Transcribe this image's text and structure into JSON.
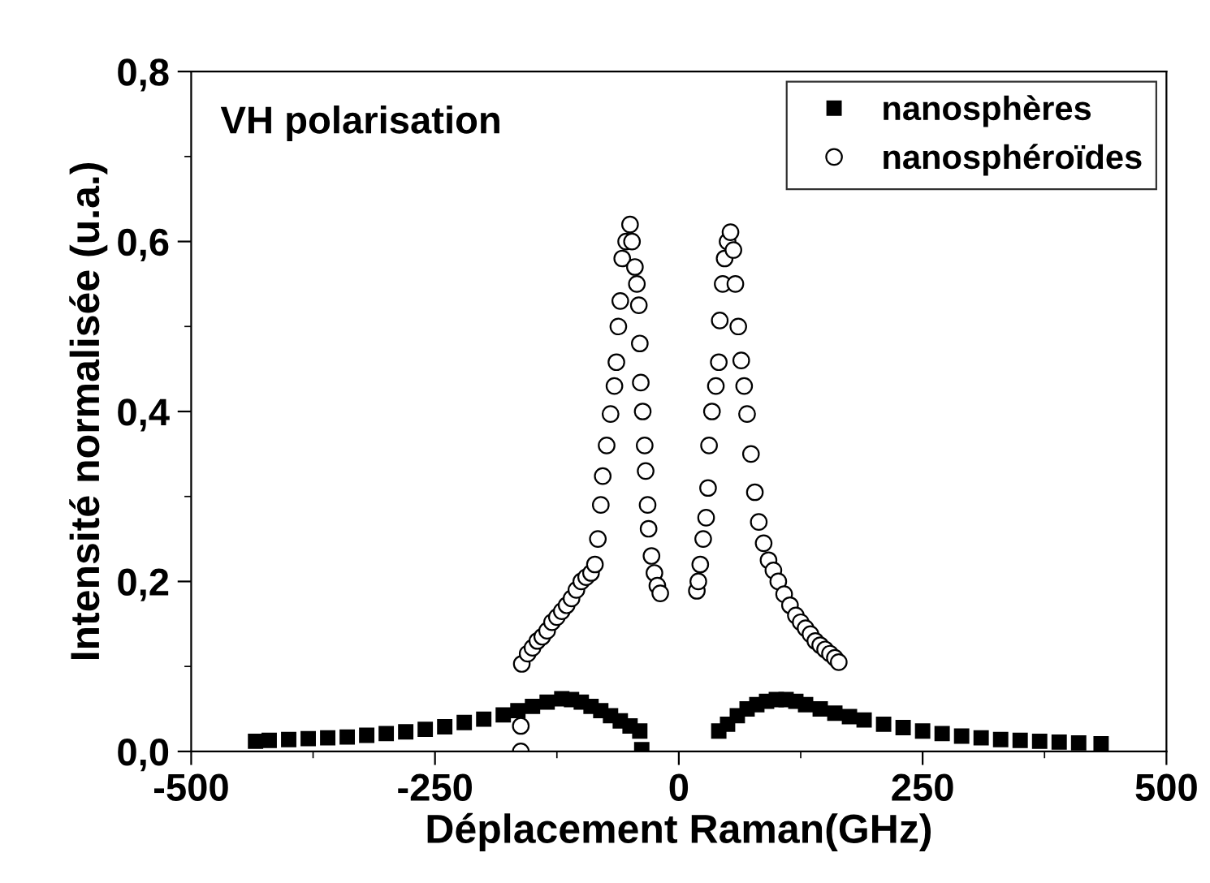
{
  "chart_data": {
    "type": "scatter",
    "xlabel": "Déplacement Raman(GHz)",
    "ylabel": "Intensité normalisée (u.a.)",
    "annotations": [
      "VH polarisation"
    ],
    "xlim": [
      -500,
      500
    ],
    "xticks": [
      -500,
      -250,
      0,
      250,
      500
    ],
    "ylim": [
      0,
      0.8
    ],
    "yticks": [
      {
        "value": 0,
        "label": "0,0"
      },
      {
        "value": 0.2,
        "label": "0,2"
      },
      {
        "value": 0.4,
        "label": "0,4"
      },
      {
        "value": 0.6,
        "label": "0,6"
      },
      {
        "value": 0.8,
        "label": "0,8"
      }
    ],
    "grid": false,
    "legend": "top right",
    "series": [
      {
        "name": "nanosphères",
        "color": "#000000",
        "marker": "square",
        "x": [
          -434,
          -420,
          -400,
          -380,
          -360,
          -340,
          -320,
          -300,
          -280,
          -260,
          -240,
          -220,
          -200,
          -180,
          -165,
          -150,
          -135,
          -120,
          -110,
          -100,
          -90,
          -80,
          -70,
          -60,
          -50,
          -40,
          -38,
          41,
          50,
          60,
          70,
          80,
          90,
          100,
          110,
          120,
          130,
          145,
          160,
          175,
          190,
          210,
          230,
          250,
          270,
          290,
          310,
          330,
          350,
          370,
          390,
          410,
          433
        ],
        "values": [
          0.012,
          0.013,
          0.014,
          0.015,
          0.016,
          0.017,
          0.019,
          0.021,
          0.023,
          0.026,
          0.029,
          0.034,
          0.038,
          0.043,
          0.048,
          0.053,
          0.058,
          0.062,
          0.061,
          0.058,
          0.053,
          0.048,
          0.042,
          0.036,
          0.03,
          0.024,
          0.002,
          0.024,
          0.032,
          0.042,
          0.05,
          0.055,
          0.059,
          0.061,
          0.061,
          0.059,
          0.055,
          0.05,
          0.045,
          0.041,
          0.037,
          0.032,
          0.028,
          0.024,
          0.021,
          0.018,
          0.016,
          0.014,
          0.013,
          0.012,
          0.011,
          0.01,
          0.009
        ]
      },
      {
        "name": "nanosphéroïdes",
        "color": "#000000",
        "marker": "circle",
        "x": [
          -162,
          -162,
          -161,
          -155,
          -150,
          -145,
          -140,
          -135,
          -130,
          -125,
          -120,
          -115,
          -110,
          -105,
          -100,
          -95,
          -90,
          -86,
          -83,
          -80,
          -78,
          -74,
          -70,
          -66,
          -64,
          -62,
          -60,
          -58,
          -54,
          -50,
          -48,
          -45,
          -43,
          -41,
          -40,
          -39,
          -37,
          -35,
          -34,
          -32,
          -31,
          -28,
          -25,
          -22,
          -19,
          18.5,
          20,
          22,
          25,
          28,
          30,
          31,
          34,
          38,
          41,
          42,
          45,
          47,
          50,
          53,
          56,
          58,
          61,
          64,
          67,
          70,
          74,
          78,
          82,
          87,
          92,
          97,
          102,
          108,
          114,
          120,
          125,
          130,
          135,
          140,
          145,
          150,
          155,
          160,
          164
        ],
        "values": [
          0.0,
          0.03,
          0.103,
          0.115,
          0.122,
          0.13,
          0.135,
          0.142,
          0.152,
          0.158,
          0.165,
          0.172,
          0.18,
          0.19,
          0.2,
          0.205,
          0.21,
          0.22,
          0.25,
          0.29,
          0.324,
          0.36,
          0.397,
          0.43,
          0.458,
          0.5,
          0.53,
          0.58,
          0.6,
          0.62,
          0.6,
          0.57,
          0.55,
          0.525,
          0.48,
          0.434,
          0.4,
          0.36,
          0.33,
          0.29,
          0.262,
          0.23,
          0.21,
          0.195,
          0.186,
          0.189,
          0.2,
          0.22,
          0.25,
          0.275,
          0.31,
          0.36,
          0.4,
          0.43,
          0.458,
          0.507,
          0.55,
          0.58,
          0.6,
          0.611,
          0.59,
          0.55,
          0.5,
          0.46,
          0.43,
          0.397,
          0.35,
          0.305,
          0.27,
          0.245,
          0.225,
          0.213,
          0.2,
          0.185,
          0.172,
          0.16,
          0.152,
          0.145,
          0.138,
          0.13,
          0.125,
          0.12,
          0.115,
          0.11,
          0.105
        ]
      }
    ]
  }
}
